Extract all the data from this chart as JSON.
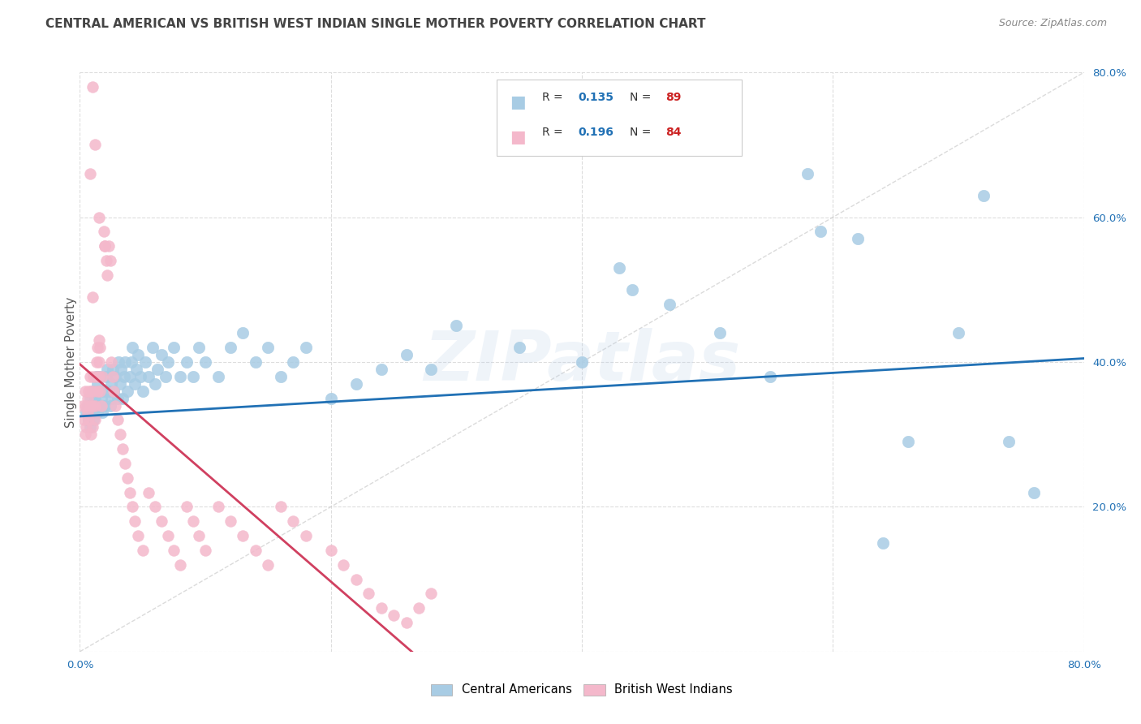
{
  "title": "CENTRAL AMERICAN VS BRITISH WEST INDIAN SINGLE MOTHER POVERTY CORRELATION CHART",
  "source": "Source: ZipAtlas.com",
  "ylabel": "Single Mother Poverty",
  "watermark": "ZIPatlas",
  "blue_color": "#a8cce4",
  "pink_color": "#f4b8cb",
  "blue_line_color": "#2171b5",
  "pink_line_color": "#d04060",
  "diag_color": "#cccccc",
  "grid_color": "#dddddd",
  "title_color": "#444444",
  "source_color": "#888888",
  "legend_r_color": "#2171b5",
  "legend_n_color": "#cc2222",
  "tick_color": "#2171b5",
  "xlim": [
    0.0,
    0.8
  ],
  "ylim": [
    0.0,
    0.8
  ],
  "blue_x": [
    0.005,
    0.006,
    0.007,
    0.008,
    0.008,
    0.009,
    0.01,
    0.01,
    0.011,
    0.012,
    0.013,
    0.014,
    0.014,
    0.015,
    0.016,
    0.016,
    0.017,
    0.018,
    0.019,
    0.02,
    0.021,
    0.022,
    0.023,
    0.024,
    0.025,
    0.025,
    0.026,
    0.027,
    0.028,
    0.03,
    0.031,
    0.032,
    0.033,
    0.034,
    0.035,
    0.036,
    0.038,
    0.04,
    0.041,
    0.042,
    0.044,
    0.045,
    0.046,
    0.048,
    0.05,
    0.052,
    0.055,
    0.058,
    0.06,
    0.062,
    0.065,
    0.068,
    0.07,
    0.075,
    0.08,
    0.085,
    0.09,
    0.095,
    0.1,
    0.11,
    0.12,
    0.13,
    0.14,
    0.15,
    0.16,
    0.17,
    0.18,
    0.2,
    0.22,
    0.24,
    0.26,
    0.28,
    0.3,
    0.35,
    0.4,
    0.43,
    0.47,
    0.51,
    0.55,
    0.59,
    0.62,
    0.64,
    0.66,
    0.7,
    0.74,
    0.76,
    0.72,
    0.58,
    0.44
  ],
  "blue_y": [
    0.33,
    0.34,
    0.32,
    0.35,
    0.31,
    0.33,
    0.34,
    0.36,
    0.32,
    0.35,
    0.38,
    0.37,
    0.33,
    0.36,
    0.34,
    0.38,
    0.35,
    0.33,
    0.36,
    0.34,
    0.38,
    0.39,
    0.36,
    0.34,
    0.37,
    0.35,
    0.39,
    0.36,
    0.38,
    0.35,
    0.4,
    0.37,
    0.39,
    0.35,
    0.38,
    0.4,
    0.36,
    0.38,
    0.4,
    0.42,
    0.37,
    0.39,
    0.41,
    0.38,
    0.36,
    0.4,
    0.38,
    0.42,
    0.37,
    0.39,
    0.41,
    0.38,
    0.4,
    0.42,
    0.38,
    0.4,
    0.38,
    0.42,
    0.4,
    0.38,
    0.42,
    0.44,
    0.4,
    0.42,
    0.38,
    0.4,
    0.42,
    0.35,
    0.37,
    0.39,
    0.41,
    0.39,
    0.45,
    0.42,
    0.4,
    0.53,
    0.48,
    0.44,
    0.38,
    0.58,
    0.57,
    0.15,
    0.29,
    0.44,
    0.29,
    0.22,
    0.63,
    0.66,
    0.5
  ],
  "pink_x": [
    0.002,
    0.003,
    0.004,
    0.004,
    0.005,
    0.005,
    0.006,
    0.006,
    0.007,
    0.007,
    0.008,
    0.008,
    0.009,
    0.009,
    0.01,
    0.01,
    0.011,
    0.011,
    0.012,
    0.012,
    0.013,
    0.013,
    0.014,
    0.014,
    0.015,
    0.015,
    0.016,
    0.016,
    0.017,
    0.018,
    0.019,
    0.02,
    0.021,
    0.022,
    0.023,
    0.024,
    0.025,
    0.026,
    0.027,
    0.028,
    0.03,
    0.032,
    0.034,
    0.036,
    0.038,
    0.04,
    0.042,
    0.044,
    0.046,
    0.05,
    0.055,
    0.06,
    0.065,
    0.07,
    0.075,
    0.08,
    0.085,
    0.09,
    0.095,
    0.1,
    0.11,
    0.12,
    0.13,
    0.14,
    0.15,
    0.16,
    0.17,
    0.18,
    0.2,
    0.21,
    0.22,
    0.23,
    0.24,
    0.25,
    0.26,
    0.27,
    0.28,
    0.01,
    0.012,
    0.008,
    0.015,
    0.02,
    0.01,
    0.015
  ],
  "pink_y": [
    0.34,
    0.32,
    0.36,
    0.3,
    0.34,
    0.31,
    0.33,
    0.35,
    0.36,
    0.32,
    0.34,
    0.38,
    0.36,
    0.3,
    0.34,
    0.31,
    0.38,
    0.36,
    0.34,
    0.32,
    0.4,
    0.38,
    0.42,
    0.36,
    0.38,
    0.4,
    0.42,
    0.36,
    0.34,
    0.38,
    0.58,
    0.56,
    0.54,
    0.52,
    0.56,
    0.54,
    0.4,
    0.38,
    0.36,
    0.34,
    0.32,
    0.3,
    0.28,
    0.26,
    0.24,
    0.22,
    0.2,
    0.18,
    0.16,
    0.14,
    0.22,
    0.2,
    0.18,
    0.16,
    0.14,
    0.12,
    0.2,
    0.18,
    0.16,
    0.14,
    0.2,
    0.18,
    0.16,
    0.14,
    0.12,
    0.2,
    0.18,
    0.16,
    0.14,
    0.12,
    0.1,
    0.08,
    0.06,
    0.05,
    0.04,
    0.06,
    0.08,
    0.78,
    0.7,
    0.66,
    0.6,
    0.56,
    0.49,
    0.43
  ]
}
